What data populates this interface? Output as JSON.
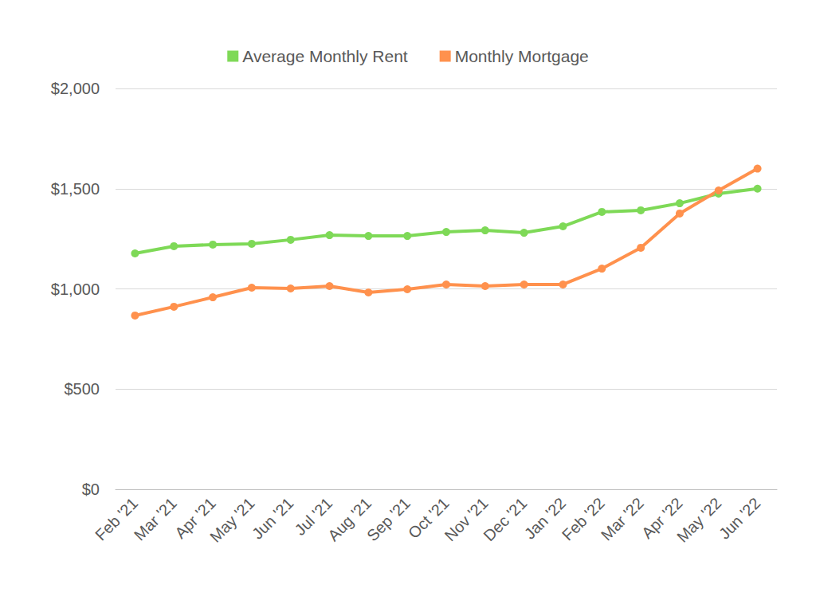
{
  "chart_data": {
    "type": "line",
    "categories": [
      "Feb '21",
      "Mar '21",
      "Apr '21",
      "May '21",
      "Jun '21",
      "Jul '21",
      "Aug '21",
      "Sep '21",
      "Oct '21",
      "Nov '21",
      "Dec '21",
      "Jan '22",
      "Feb '22",
      "Mar '22",
      "Apr '22",
      "May '22",
      "Jun '22"
    ],
    "series": [
      {
        "name": "Average Monthly Rent",
        "color": "#7ed957",
        "values": [
          1177,
          1213,
          1221,
          1225,
          1245,
          1268,
          1264,
          1264,
          1284,
          1292,
          1280,
          1312,
          1384,
          1392,
          1427,
          1475,
          1500
        ]
      },
      {
        "name": "Monthly Mortgage",
        "color": "#ff914d",
        "values": [
          867,
          911,
          958,
          1006,
          1002,
          1014,
          982,
          998,
          1022,
          1014,
          1022,
          1022,
          1101,
          1205,
          1376,
          1491,
          1600
        ]
      }
    ],
    "ylim": [
      0,
      2000
    ],
    "yticks": [
      {
        "value": 0,
        "label": "$0"
      },
      {
        "value": 500,
        "label": "$500"
      },
      {
        "value": 1000,
        "label": "$1,000"
      },
      {
        "value": 1500,
        "label": "$1,500"
      },
      {
        "value": 2000,
        "label": "$2,000"
      }
    ],
    "grid": true,
    "legend": "top",
    "marker": "circle"
  }
}
